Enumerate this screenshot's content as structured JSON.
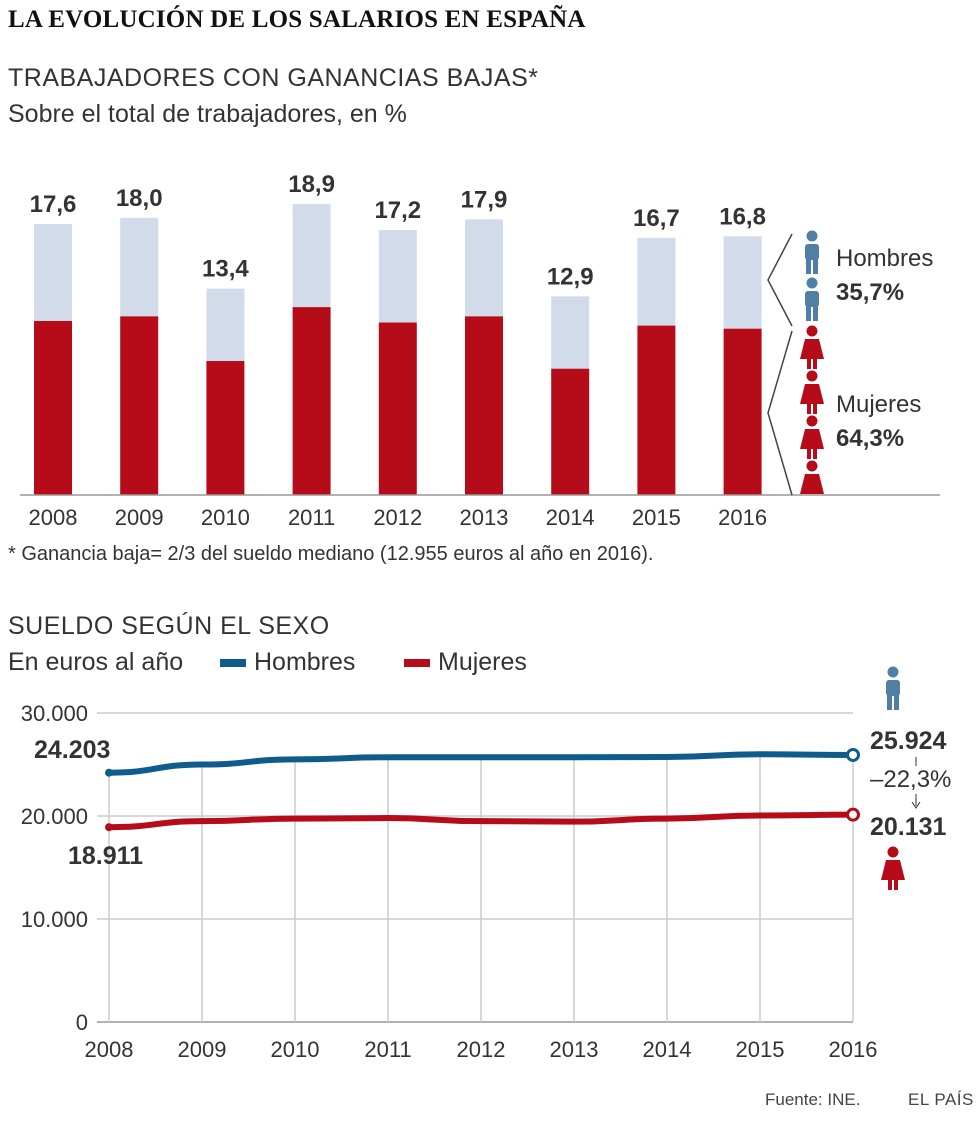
{
  "title": "LA EVOLUCIÓN DE LOS SALARIOS EN ESPAÑA",
  "colors": {
    "men": "#0d5c8c",
    "men_light": "#d1dbea",
    "women": "#b60c19",
    "men_icon": "#4f7fa5",
    "grid": "#cccccc",
    "axis": "#999999"
  },
  "section1": {
    "title": "TRABAJADORES CON GANANCIAS BAJAS*",
    "subtitle": "Sobre el total de trabajadores, en %",
    "note": "* Ganancia baja= 2/3 del sueldo mediano (12.955 euros al año en 2016).",
    "legend_men_label": "Hombres",
    "legend_men_value": "35,7%",
    "legend_women_label": "Mujeres",
    "legend_women_value": "64,3%"
  },
  "section2": {
    "title": "SUELDO SEGÚN EL SEXO",
    "subtitle": "En euros al año",
    "legend_men": "Hombres",
    "legend_women": "Mujeres",
    "start_men_label": "24.203",
    "start_women_label": "18.911",
    "end_men_label": "25.924",
    "end_women_label": "20.131",
    "gap_label": "–22,3%"
  },
  "chart_data": [
    {
      "type": "bar",
      "title": "TRABAJADORES CON GANANCIAS BAJAS*",
      "ylabel": "Sobre el total de trabajadores, en %",
      "categories": [
        "2008",
        "2009",
        "2010",
        "2011",
        "2012",
        "2013",
        "2014",
        "2015",
        "2016"
      ],
      "totals": [
        17.6,
        18.0,
        13.4,
        18.9,
        17.2,
        17.9,
        12.9,
        16.7,
        16.8
      ],
      "total_labels": [
        "17,6",
        "18,0",
        "13,4",
        "18,9",
        "17,2",
        "17,9",
        "12,9",
        "16,7",
        "16,8"
      ],
      "series": [
        {
          "name": "Mujeres",
          "values": [
            11.3,
            11.6,
            8.7,
            12.2,
            11.2,
            11.6,
            8.2,
            11.0,
            10.8
          ]
        },
        {
          "name": "Hombres",
          "values": [
            6.3,
            6.4,
            4.7,
            6.7,
            6.0,
            6.3,
            4.7,
            5.7,
            6.0
          ]
        }
      ],
      "stacked": true,
      "ylim": [
        0,
        20
      ]
    },
    {
      "type": "line",
      "title": "SUELDO SEGÚN EL SEXO",
      "ylabel": "En euros al año",
      "x": [
        "2008",
        "2009",
        "2010",
        "2011",
        "2012",
        "2013",
        "2014",
        "2015",
        "2016"
      ],
      "series": [
        {
          "name": "Hombres",
          "values": [
            24203,
            25000,
            25500,
            25700,
            25700,
            25700,
            25730,
            25990,
            25924
          ]
        },
        {
          "name": "Mujeres",
          "values": [
            18911,
            19500,
            19750,
            19800,
            19500,
            19450,
            19750,
            20050,
            20131
          ]
        }
      ],
      "yticks": [
        0,
        10000,
        20000,
        30000
      ],
      "ytick_labels": [
        "0",
        "10.000",
        "20.000",
        "30.000"
      ],
      "ylim": [
        0,
        30000
      ],
      "grid": true
    }
  ],
  "footer": {
    "source": "Fuente: INE.",
    "brand": "EL PAÍS"
  }
}
